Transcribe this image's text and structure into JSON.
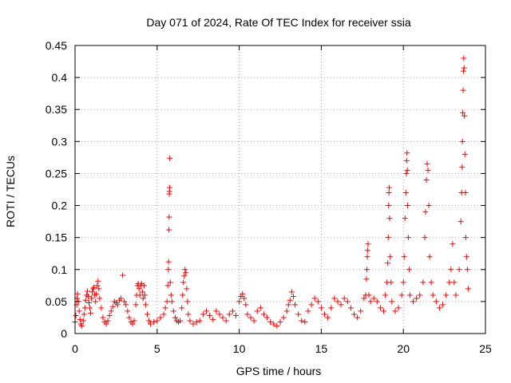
{
  "chart_data": {
    "type": "scatter",
    "title": "Day 071 of 2024, Rate Of TEC Index for receiver ssia",
    "xlabel": "GPS time / hours",
    "ylabel": "ROTI / TECUs",
    "xlim": [
      0,
      25
    ],
    "ylim": [
      0,
      0.45
    ],
    "x_ticks": [
      0,
      5,
      10,
      15,
      20,
      25
    ],
    "x_tick_labels": [
      "0",
      "5",
      "10",
      "15",
      "20",
      "25"
    ],
    "y_ticks": [
      0,
      0.05,
      0.1,
      0.15,
      0.2,
      0.25,
      0.3,
      0.35,
      0.4,
      0.45
    ],
    "y_tick_labels": [
      "0",
      "0.05",
      "0.1",
      "0.15",
      "0.2",
      "0.25",
      "0.3",
      "0.35",
      "0.4",
      "0.45"
    ],
    "grid": true,
    "marker": "+",
    "color": "#ff0000",
    "series": [
      {
        "name": "ROTI",
        "points": [
          [
            0.0,
            0.018
          ],
          [
            0.05,
            0.028
          ],
          [
            0.1,
            0.045
          ],
          [
            0.12,
            0.055
          ],
          [
            0.15,
            0.062
          ],
          [
            0.2,
            0.05
          ],
          [
            0.25,
            0.035
          ],
          [
            0.3,
            0.022
          ],
          [
            0.35,
            0.015
          ],
          [
            0.4,
            0.012
          ],
          [
            0.5,
            0.02
          ],
          [
            0.55,
            0.03
          ],
          [
            0.6,
            0.04
          ],
          [
            0.65,
            0.052
          ],
          [
            0.7,
            0.06
          ],
          [
            0.75,
            0.066
          ],
          [
            0.8,
            0.058
          ],
          [
            0.85,
            0.048
          ],
          [
            0.9,
            0.04
          ],
          [
            0.95,
            0.032
          ],
          [
            1.0,
            0.055
          ],
          [
            1.05,
            0.065
          ],
          [
            1.1,
            0.07
          ],
          [
            1.15,
            0.072
          ],
          [
            1.2,
            0.06
          ],
          [
            1.25,
            0.05
          ],
          [
            1.3,
            0.062
          ],
          [
            1.35,
            0.075
          ],
          [
            1.4,
            0.082
          ],
          [
            1.45,
            0.07
          ],
          [
            1.5,
            0.055
          ],
          [
            1.6,
            0.04
          ],
          [
            1.7,
            0.025
          ],
          [
            1.8,
            0.018
          ],
          [
            1.9,
            0.015
          ],
          [
            2.0,
            0.02
          ],
          [
            2.1,
            0.028
          ],
          [
            2.2,
            0.035
          ],
          [
            2.3,
            0.042
          ],
          [
            2.4,
            0.05
          ],
          [
            2.5,
            0.048
          ],
          [
            2.6,
            0.045
          ],
          [
            2.7,
            0.052
          ],
          [
            2.8,
            0.055
          ],
          [
            2.9,
            0.091
          ],
          [
            3.0,
            0.05
          ],
          [
            3.1,
            0.045
          ],
          [
            3.2,
            0.035
          ],
          [
            3.3,
            0.025
          ],
          [
            3.4,
            0.018
          ],
          [
            3.5,
            0.015
          ],
          [
            3.6,
            0.02
          ],
          [
            3.7,
            0.045
          ],
          [
            3.75,
            0.06
          ],
          [
            3.8,
            0.075
          ],
          [
            3.85,
            0.078
          ],
          [
            3.9,
            0.07
          ],
          [
            3.95,
            0.06
          ],
          [
            4.0,
            0.075
          ],
          [
            4.05,
            0.078
          ],
          [
            4.1,
            0.065
          ],
          [
            4.15,
            0.055
          ],
          [
            4.2,
            0.075
          ],
          [
            4.25,
            0.06
          ],
          [
            4.3,
            0.045
          ],
          [
            4.4,
            0.03
          ],
          [
            4.5,
            0.02
          ],
          [
            4.6,
            0.015
          ],
          [
            4.8,
            0.018
          ],
          [
            5.0,
            0.02
          ],
          [
            5.2,
            0.025
          ],
          [
            5.4,
            0.03
          ],
          [
            5.5,
            0.04
          ],
          [
            5.6,
            0.05
          ],
          [
            5.65,
            0.075
          ],
          [
            5.68,
            0.1
          ],
          [
            5.7,
            0.112
          ],
          [
            5.72,
            0.162
          ],
          [
            5.73,
            0.182
          ],
          [
            5.74,
            0.218
          ],
          [
            5.75,
            0.222
          ],
          [
            5.76,
            0.228
          ],
          [
            5.77,
            0.274
          ],
          [
            5.8,
            0.08
          ],
          [
            5.85,
            0.06
          ],
          [
            5.9,
            0.05
          ],
          [
            6.0,
            0.035
          ],
          [
            6.1,
            0.025
          ],
          [
            6.2,
            0.02
          ],
          [
            6.3,
            0.018
          ],
          [
            6.4,
            0.02
          ],
          [
            6.5,
            0.04
          ],
          [
            6.55,
            0.06
          ],
          [
            6.6,
            0.08
          ],
          [
            6.65,
            0.09
          ],
          [
            6.7,
            0.1
          ],
          [
            6.75,
            0.095
          ],
          [
            6.8,
            0.07
          ],
          [
            6.85,
            0.05
          ],
          [
            6.9,
            0.03
          ],
          [
            7.0,
            0.02
          ],
          [
            7.2,
            0.015
          ],
          [
            7.4,
            0.018
          ],
          [
            7.6,
            0.02
          ],
          [
            7.8,
            0.03
          ],
          [
            8.0,
            0.035
          ],
          [
            8.2,
            0.028
          ],
          [
            8.4,
            0.022
          ],
          [
            8.6,
            0.035
          ],
          [
            8.8,
            0.03
          ],
          [
            9.0,
            0.025
          ],
          [
            9.2,
            0.02
          ],
          [
            9.4,
            0.03
          ],
          [
            9.6,
            0.035
          ],
          [
            9.8,
            0.028
          ],
          [
            10.0,
            0.05
          ],
          [
            10.1,
            0.058
          ],
          [
            10.2,
            0.062
          ],
          [
            10.3,
            0.055
          ],
          [
            10.4,
            0.045
          ],
          [
            10.5,
            0.03
          ],
          [
            10.7,
            0.025
          ],
          [
            10.9,
            0.02
          ],
          [
            11.1,
            0.035
          ],
          [
            11.3,
            0.04
          ],
          [
            11.5,
            0.03
          ],
          [
            11.7,
            0.025
          ],
          [
            11.9,
            0.018
          ],
          [
            12.1,
            0.015
          ],
          [
            12.3,
            0.012
          ],
          [
            12.5,
            0.018
          ],
          [
            12.7,
            0.025
          ],
          [
            12.9,
            0.035
          ],
          [
            13.0,
            0.045
          ],
          [
            13.1,
            0.052
          ],
          [
            13.2,
            0.065
          ],
          [
            13.3,
            0.058
          ],
          [
            13.4,
            0.045
          ],
          [
            13.6,
            0.03
          ],
          [
            13.8,
            0.02
          ],
          [
            14.0,
            0.018
          ],
          [
            14.2,
            0.035
          ],
          [
            14.4,
            0.045
          ],
          [
            14.6,
            0.055
          ],
          [
            14.8,
            0.05
          ],
          [
            15.0,
            0.04
          ],
          [
            15.2,
            0.03
          ],
          [
            15.4,
            0.025
          ],
          [
            15.6,
            0.04
          ],
          [
            15.8,
            0.055
          ],
          [
            16.0,
            0.05
          ],
          [
            16.2,
            0.045
          ],
          [
            16.4,
            0.055
          ],
          [
            16.6,
            0.05
          ],
          [
            16.8,
            0.04
          ],
          [
            17.0,
            0.03
          ],
          [
            17.2,
            0.025
          ],
          [
            17.4,
            0.035
          ],
          [
            17.6,
            0.055
          ],
          [
            17.7,
            0.06
          ],
          [
            17.75,
            0.085
          ],
          [
            17.78,
            0.1
          ],
          [
            17.8,
            0.12
          ],
          [
            17.82,
            0.13
          ],
          [
            17.85,
            0.14
          ],
          [
            17.9,
            0.06
          ],
          [
            18.0,
            0.05
          ],
          [
            18.2,
            0.055
          ],
          [
            18.4,
            0.05
          ],
          [
            18.6,
            0.04
          ],
          [
            18.8,
            0.035
          ],
          [
            18.9,
            0.06
          ],
          [
            19.0,
            0.08
          ],
          [
            19.05,
            0.11
          ],
          [
            19.08,
            0.15
          ],
          [
            19.1,
            0.2
          ],
          [
            19.12,
            0.22
          ],
          [
            19.14,
            0.228
          ],
          [
            19.16,
            0.18
          ],
          [
            19.2,
            0.12
          ],
          [
            19.25,
            0.08
          ],
          [
            19.3,
            0.05
          ],
          [
            19.5,
            0.035
          ],
          [
            19.7,
            0.04
          ],
          [
            19.9,
            0.06
          ],
          [
            20.0,
            0.08
          ],
          [
            20.05,
            0.12
          ],
          [
            20.1,
            0.18
          ],
          [
            20.15,
            0.22
          ],
          [
            20.18,
            0.25
          ],
          [
            20.2,
            0.27
          ],
          [
            20.22,
            0.282
          ],
          [
            20.24,
            0.255
          ],
          [
            20.26,
            0.2
          ],
          [
            20.3,
            0.15
          ],
          [
            20.35,
            0.1
          ],
          [
            20.4,
            0.06
          ],
          [
            20.6,
            0.05
          ],
          [
            20.8,
            0.055
          ],
          [
            21.0,
            0.06
          ],
          [
            21.2,
            0.08
          ],
          [
            21.3,
            0.15
          ],
          [
            21.35,
            0.19
          ],
          [
            21.4,
            0.24
          ],
          [
            21.45,
            0.265
          ],
          [
            21.5,
            0.255
          ],
          [
            21.55,
            0.2
          ],
          [
            21.6,
            0.12
          ],
          [
            21.7,
            0.08
          ],
          [
            21.8,
            0.06
          ],
          [
            22.0,
            0.05
          ],
          [
            22.2,
            0.04
          ],
          [
            22.4,
            0.045
          ],
          [
            22.6,
            0.06
          ],
          [
            22.8,
            0.08
          ],
          [
            22.9,
            0.1
          ],
          [
            23.0,
            0.14
          ],
          [
            23.1,
            0.08
          ],
          [
            23.2,
            0.06
          ],
          [
            23.4,
            0.1
          ],
          [
            23.5,
            0.175
          ],
          [
            23.55,
            0.22
          ],
          [
            23.58,
            0.26
          ],
          [
            23.6,
            0.3
          ],
          [
            23.62,
            0.345
          ],
          [
            23.64,
            0.38
          ],
          [
            23.66,
            0.41
          ],
          [
            23.68,
            0.43
          ],
          [
            23.7,
            0.415
          ],
          [
            23.72,
            0.34
          ],
          [
            23.75,
            0.28
          ],
          [
            23.78,
            0.22
          ],
          [
            23.8,
            0.15
          ],
          [
            23.85,
            0.12
          ],
          [
            23.9,
            0.1
          ],
          [
            23.95,
            0.07
          ]
        ]
      }
    ]
  }
}
